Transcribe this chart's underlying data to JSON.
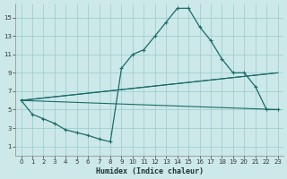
{
  "xlabel": "Humidex (Indice chaleur)",
  "bg_color": "#cce8e8",
  "grid_color": "#99cccc",
  "line_color": "#1a6b6b",
  "x_ticks": [
    0,
    1,
    2,
    3,
    4,
    5,
    6,
    7,
    8,
    9,
    10,
    11,
    12,
    13,
    14,
    15,
    16,
    17,
    18,
    19,
    20,
    21,
    22,
    23
  ],
  "y_ticks": [
    1,
    3,
    5,
    7,
    9,
    11,
    13,
    15
  ],
  "ylim": [
    0.0,
    16.5
  ],
  "xlim": [
    -0.5,
    23.5
  ],
  "main_series": {
    "x": [
      0,
      1,
      2,
      3,
      4,
      5,
      6,
      7,
      8,
      9,
      10,
      11,
      12,
      13,
      14,
      15,
      16,
      17,
      18,
      19,
      20,
      21,
      22,
      23
    ],
    "y": [
      6.0,
      4.5,
      4.0,
      3.5,
      2.8,
      2.5,
      2.2,
      1.8,
      1.5,
      9.5,
      11.0,
      11.5,
      13.0,
      14.5,
      16.0,
      16.0,
      14.0,
      12.5,
      10.5,
      9.0,
      9.0,
      7.5,
      5.0,
      5.0
    ]
  },
  "straight_lines": [
    {
      "x": [
        0,
        23
      ],
      "y": [
        6.0,
        5.0
      ]
    },
    {
      "x": [
        0,
        23
      ],
      "y": [
        6.0,
        9.0
      ]
    },
    {
      "x": [
        0,
        23
      ],
      "y": [
        6.0,
        9.0
      ]
    }
  ]
}
